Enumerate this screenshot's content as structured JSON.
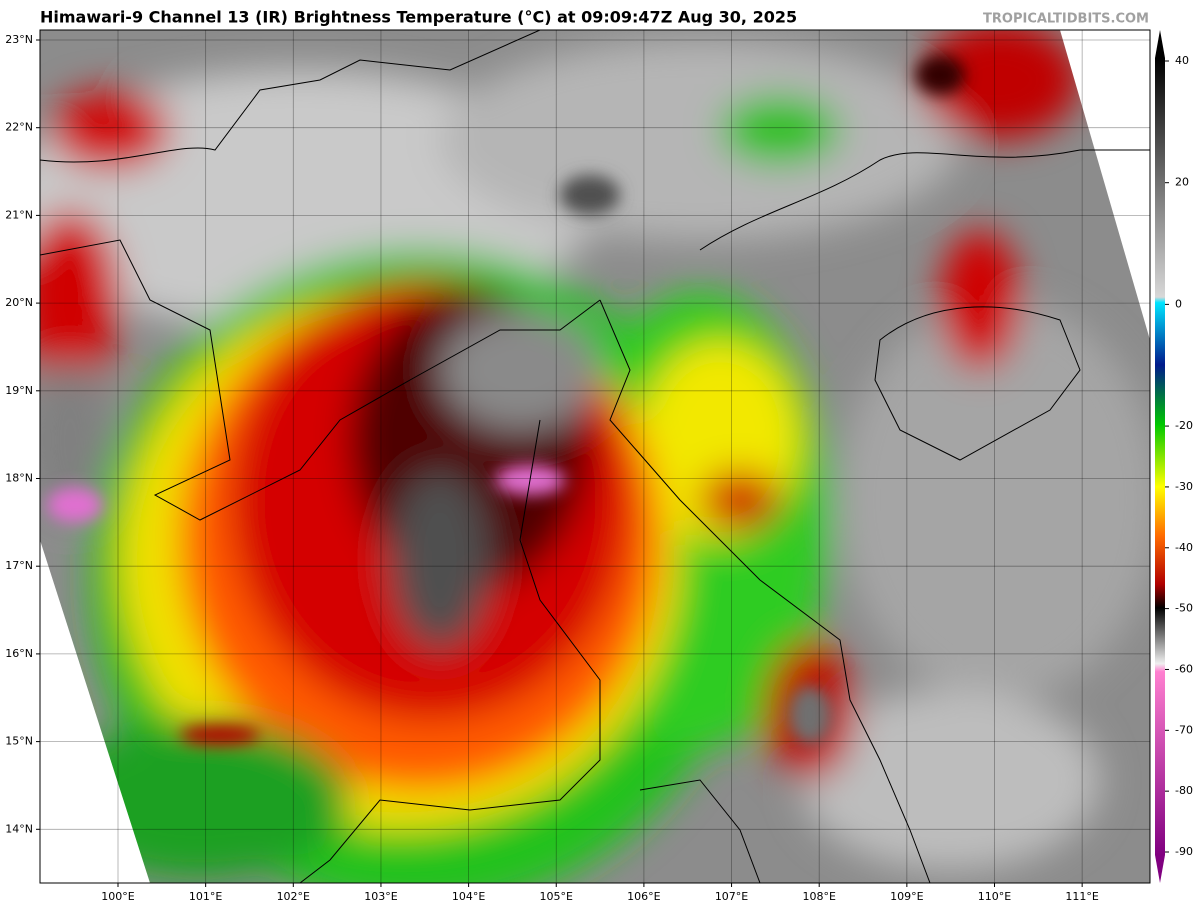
{
  "title": "Himawari-9 Channel 13 (IR) Brightness Temperature (°C) at 09:09:47Z Aug 30, 2025",
  "watermark": "TROPICALTIDBITS.COM",
  "lat_labels": [
    "23°N",
    "22°N",
    "21°N",
    "20°N",
    "19°N",
    "18°N",
    "17°N",
    "16°N",
    "15°N",
    "14°N"
  ],
  "lon_labels": [
    "100°E",
    "101°E",
    "102°E",
    "103°E",
    "104°E",
    "105°E",
    "106°E",
    "107°E",
    "108°E",
    "109°E",
    "110°E",
    "111°E"
  ],
  "colorbar": {
    "lim": [
      -90,
      40
    ],
    "ticks": [
      40,
      20,
      0,
      -20,
      -30,
      -40,
      -50,
      -60,
      -70,
      -80,
      -90
    ]
  }
}
